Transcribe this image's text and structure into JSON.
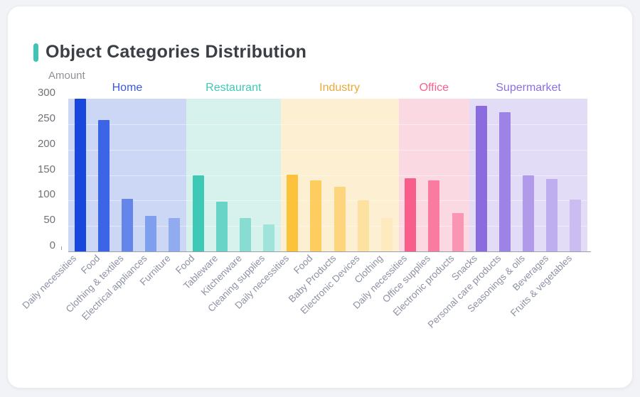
{
  "card": {
    "title": "Object Categories Distribution",
    "accent_color": "#3fc3b4"
  },
  "chart_data": {
    "type": "bar",
    "title": "Object Categories Distribution",
    "xlabel": "",
    "ylabel": "Amount",
    "ylim": [
      0,
      300
    ],
    "yticks": [
      0,
      50,
      100,
      150,
      200,
      250,
      300
    ],
    "grid": true,
    "legend_position": "none",
    "groups": [
      {
        "name": "Home",
        "label_color": "#3c55e5",
        "band_color": "#ccd6f5",
        "categories": [
          "Daily necessities",
          "Food",
          "Clothing & textiles",
          "Electrical appliances",
          "Furniture"
        ],
        "values": [
          300,
          258,
          103,
          70,
          65
        ],
        "bar_colors": [
          "#1847dd",
          "#3c64e6",
          "#6486ea",
          "#7f9eee",
          "#91abf0"
        ]
      },
      {
        "name": "Restaurant",
        "label_color": "#40c9b5",
        "band_color": "#d7f1ed",
        "categories": [
          "Food",
          "Tableware",
          "Kitchenware",
          "Cleaning supplies"
        ],
        "values": [
          150,
          98,
          66,
          53
        ],
        "bar_colors": [
          "#3ec9b6",
          "#68d4c7",
          "#87ddd2",
          "#9fe3da"
        ]
      },
      {
        "name": "Industry",
        "label_color": "#e9a93b",
        "band_color": "#fcefd2",
        "categories": [
          "Daily necessities",
          "Food",
          "Baby Products",
          "Electronic Devices",
          "Clothing"
        ],
        "values": [
          151,
          140,
          127,
          101,
          65
        ],
        "bar_colors": [
          "#fdc23c",
          "#fdcd60",
          "#fdd57d",
          "#fde1a1",
          "#fdeabf"
        ]
      },
      {
        "name": "Office",
        "label_color": "#f8618d",
        "band_color": "#fbd9e3",
        "categories": [
          "Daily necessities",
          "Office supplies",
          "Electronic products"
        ],
        "values": [
          144,
          140,
          76
        ],
        "bar_colors": [
          "#f95e8b",
          "#f97ba0",
          "#fa96b3"
        ]
      },
      {
        "name": "Supermarket",
        "label_color": "#8b70e3",
        "band_color": "#e3dcf7",
        "categories": [
          "Snacks",
          "Personal care products",
          "Seasonings & oils",
          "Beverages",
          "Fruits & vegetables"
        ],
        "values": [
          286,
          273,
          150,
          142,
          102
        ],
        "bar_colors": [
          "#8a6ce0",
          "#9c83e5",
          "#b19aea",
          "#bfaeef",
          "#cbbcf2"
        ]
      }
    ]
  }
}
